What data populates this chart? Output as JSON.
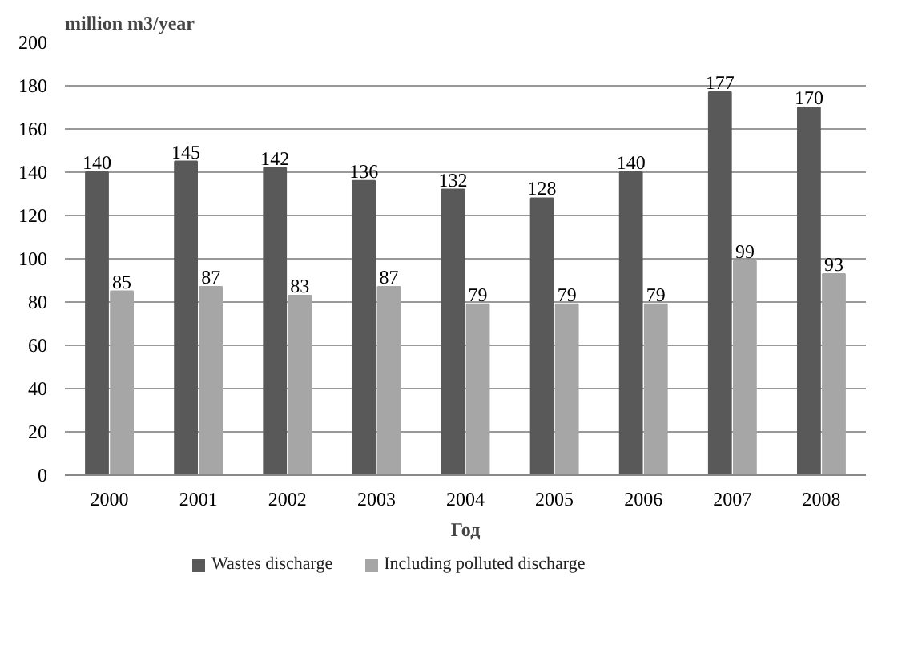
{
  "chart_data": {
    "type": "bar",
    "ylabel": "million m3/year",
    "xlabel": "Год",
    "categories": [
      "2000",
      "2001",
      "2002",
      "2003",
      "2004",
      "2005",
      "2006",
      "2007",
      "2008"
    ],
    "series": [
      {
        "name": "Wastes discharge",
        "color": "#595959",
        "values": [
          140,
          145,
          142,
          136,
          132,
          128,
          140,
          177,
          170
        ]
      },
      {
        "name": "Including polluted discharge",
        "color": "#a6a6a6",
        "values": [
          85,
          87,
          83,
          87,
          79,
          79,
          79,
          99,
          93
        ]
      }
    ],
    "ylim": [
      0,
      200
    ],
    "yticks": [
      0,
      20,
      40,
      60,
      80,
      100,
      120,
      140,
      160,
      180,
      200
    ],
    "grid": "y",
    "legend": "bottom",
    "data_labels": true
  }
}
